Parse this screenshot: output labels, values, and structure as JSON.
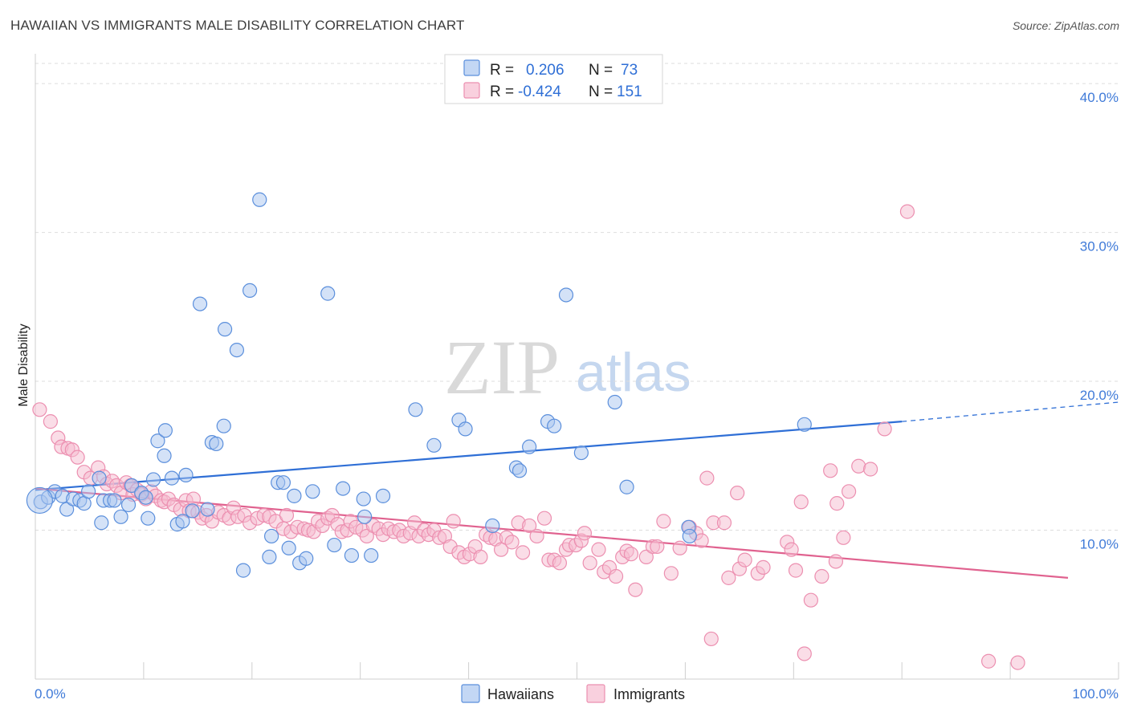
{
  "title": "HAWAIIAN VS IMMIGRANTS MALE DISABILITY CORRELATION CHART",
  "source": "Source: ZipAtlas.com",
  "watermark": {
    "zip": "ZIP",
    "atlas": "atlas"
  },
  "colors": {
    "hawaiians_fill": "#a9c6ef",
    "hawaiians_stroke": "#5b8fdc",
    "hawaiians_line": "#2f6fd6",
    "immigrants_fill": "#f6bcd0",
    "immigrants_stroke": "#ec8fb0",
    "immigrants_line": "#e0628f",
    "grid": "#dddddd",
    "tick_label": "#3f7ad8"
  },
  "legend": {
    "rows": [
      {
        "r_label": "R =",
        "r_value": "0.206",
        "n_label": "N =",
        "n_value": "73",
        "series": "hawaiians"
      },
      {
        "r_label": "R =",
        "r_value": "-0.424",
        "n_label": "N =",
        "n_value": "151",
        "series": "immigrants"
      }
    ]
  },
  "bottom_legend": [
    {
      "label": "Hawaiians",
      "series": "hawaiians"
    },
    {
      "label": "Immigrants",
      "series": "immigrants"
    }
  ],
  "chart_data": {
    "type": "scatter",
    "title": "HAWAIIAN VS IMMIGRANTS MALE DISABILITY CORRELATION CHART",
    "xlabel": "",
    "ylabel": "Male Disability",
    "xlim": [
      0,
      100
    ],
    "ylim": [
      0,
      42
    ],
    "x_tick_labels": [
      "0.0%",
      "100.0%"
    ],
    "y_ticks": [
      10,
      20,
      30,
      40
    ],
    "y_tick_labels": [
      "10.0%",
      "20.0%",
      "30.0%",
      "40.0%"
    ],
    "grid": "horizontal dashed",
    "legend_placement": "top-center",
    "series": [
      {
        "name": "Hawaiians",
        "R": 0.206,
        "N": 73,
        "trend": {
          "x": [
            0,
            80
          ],
          "y": [
            12.7,
            17.3
          ],
          "dashed_extension": {
            "x": [
              80,
              100
            ],
            "y": [
              17.3,
              18.6
            ]
          }
        },
        "points": [
          [
            0.5,
            11.9
          ],
          [
            1.2,
            12.2
          ],
          [
            1.8,
            12.6
          ],
          [
            2.5,
            12.3
          ],
          [
            2.9,
            11.4
          ],
          [
            3.5,
            12.1
          ],
          [
            4.1,
            12.0
          ],
          [
            4.5,
            11.8
          ],
          [
            4.9,
            12.6
          ],
          [
            5.9,
            13.5
          ],
          [
            6.1,
            10.5
          ],
          [
            6.3,
            12.0
          ],
          [
            6.9,
            12.0
          ],
          [
            7.3,
            12.0
          ],
          [
            7.9,
            10.9
          ],
          [
            8.6,
            11.7
          ],
          [
            8.9,
            13.0
          ],
          [
            9.8,
            12.5
          ],
          [
            10.2,
            12.2
          ],
          [
            10.4,
            10.8
          ],
          [
            10.9,
            13.4
          ],
          [
            11.3,
            16.0
          ],
          [
            11.9,
            15.0
          ],
          [
            12.0,
            16.7
          ],
          [
            12.6,
            13.5
          ],
          [
            13.1,
            10.4
          ],
          [
            13.6,
            10.6
          ],
          [
            13.9,
            13.7
          ],
          [
            14.5,
            11.3
          ],
          [
            15.2,
            25.2
          ],
          [
            15.9,
            11.4
          ],
          [
            16.3,
            15.9
          ],
          [
            16.7,
            15.8
          ],
          [
            17.5,
            23.5
          ],
          [
            17.4,
            17.0
          ],
          [
            18.6,
            22.1
          ],
          [
            19.2,
            7.3
          ],
          [
            19.8,
            26.1
          ],
          [
            20.7,
            32.2
          ],
          [
            21.6,
            8.2
          ],
          [
            21.8,
            9.6
          ],
          [
            22.4,
            13.2
          ],
          [
            22.9,
            13.2
          ],
          [
            23.4,
            8.8
          ],
          [
            23.9,
            12.3
          ],
          [
            24.4,
            7.8
          ],
          [
            25.0,
            8.1
          ],
          [
            25.6,
            12.6
          ],
          [
            27.0,
            25.9
          ],
          [
            27.6,
            9.0
          ],
          [
            28.4,
            12.8
          ],
          [
            29.2,
            8.3
          ],
          [
            30.3,
            12.1
          ],
          [
            30.4,
            10.9
          ],
          [
            31.0,
            8.3
          ],
          [
            32.1,
            12.3
          ],
          [
            35.1,
            18.1
          ],
          [
            36.8,
            15.7
          ],
          [
            39.1,
            17.4
          ],
          [
            39.7,
            16.8
          ],
          [
            42.2,
            10.3
          ],
          [
            44.4,
            14.2
          ],
          [
            44.7,
            14.0
          ],
          [
            45.6,
            15.6
          ],
          [
            47.3,
            17.3
          ],
          [
            47.9,
            17.0
          ],
          [
            49.0,
            25.8
          ],
          [
            50.4,
            15.2
          ],
          [
            53.5,
            18.6
          ],
          [
            54.6,
            12.9
          ],
          [
            60.3,
            10.2
          ],
          [
            60.4,
            9.6
          ],
          [
            71.0,
            17.1
          ]
        ]
      },
      {
        "name": "Immigrants",
        "R": -0.424,
        "N": 151,
        "trend": {
          "x": [
            0,
            100
          ],
          "y": [
            12.8,
            6.8
          ]
        },
        "points": [
          [
            0.4,
            18.1
          ],
          [
            1.4,
            17.3
          ],
          [
            2.1,
            16.2
          ],
          [
            2.4,
            15.6
          ],
          [
            3.0,
            15.5
          ],
          [
            3.4,
            15.4
          ],
          [
            3.9,
            14.9
          ],
          [
            4.5,
            13.9
          ],
          [
            5.1,
            13.5
          ],
          [
            5.8,
            14.2
          ],
          [
            6.3,
            13.6
          ],
          [
            6.6,
            13.1
          ],
          [
            7.1,
            13.3
          ],
          [
            7.5,
            13.0
          ],
          [
            7.9,
            12.5
          ],
          [
            8.4,
            13.2
          ],
          [
            8.8,
            13.0
          ],
          [
            9.0,
            12.4
          ],
          [
            9.4,
            12.7
          ],
          [
            9.8,
            12.4
          ],
          [
            10.2,
            12.1
          ],
          [
            10.7,
            12.6
          ],
          [
            11.1,
            12.3
          ],
          [
            11.6,
            12.0
          ],
          [
            11.9,
            11.9
          ],
          [
            12.3,
            12.1
          ],
          [
            12.8,
            11.7
          ],
          [
            13.4,
            11.4
          ],
          [
            13.9,
            12.0
          ],
          [
            14.2,
            11.3
          ],
          [
            14.6,
            12.1
          ],
          [
            15.0,
            11.2
          ],
          [
            15.4,
            10.8
          ],
          [
            15.8,
            11.0
          ],
          [
            16.3,
            10.6
          ],
          [
            16.9,
            11.2
          ],
          [
            17.4,
            11.0
          ],
          [
            17.9,
            10.8
          ],
          [
            18.3,
            11.5
          ],
          [
            18.7,
            10.9
          ],
          [
            19.3,
            11.0
          ],
          [
            19.8,
            10.5
          ],
          [
            20.5,
            10.8
          ],
          [
            21.1,
            11.0
          ],
          [
            21.6,
            10.9
          ],
          [
            22.2,
            10.6
          ],
          [
            22.9,
            10.1
          ],
          [
            23.2,
            11.0
          ],
          [
            23.6,
            9.9
          ],
          [
            24.2,
            10.2
          ],
          [
            24.8,
            10.1
          ],
          [
            25.2,
            10.0
          ],
          [
            25.7,
            9.9
          ],
          [
            26.1,
            10.6
          ],
          [
            26.5,
            10.3
          ],
          [
            27.0,
            10.8
          ],
          [
            27.4,
            11.0
          ],
          [
            27.9,
            10.4
          ],
          [
            28.3,
            9.9
          ],
          [
            28.8,
            10.0
          ],
          [
            29.1,
            10.6
          ],
          [
            29.6,
            10.2
          ],
          [
            30.2,
            10.0
          ],
          [
            30.6,
            9.6
          ],
          [
            31.2,
            10.3
          ],
          [
            31.7,
            10.1
          ],
          [
            32.1,
            9.7
          ],
          [
            32.6,
            10.1
          ],
          [
            33.1,
            9.9
          ],
          [
            33.6,
            10.0
          ],
          [
            34.0,
            9.6
          ],
          [
            34.6,
            9.8
          ],
          [
            35.0,
            10.5
          ],
          [
            35.4,
            9.6
          ],
          [
            35.9,
            10.0
          ],
          [
            36.3,
            9.7
          ],
          [
            36.8,
            10.0
          ],
          [
            37.3,
            9.5
          ],
          [
            37.8,
            9.6
          ],
          [
            38.3,
            8.9
          ],
          [
            38.6,
            10.6
          ],
          [
            39.1,
            8.5
          ],
          [
            39.6,
            8.2
          ],
          [
            40.1,
            8.4
          ],
          [
            40.6,
            8.9
          ],
          [
            41.1,
            8.2
          ],
          [
            41.6,
            9.7
          ],
          [
            42.0,
            9.5
          ],
          [
            42.5,
            9.4
          ],
          [
            43.0,
            8.7
          ],
          [
            43.5,
            9.5
          ],
          [
            44.0,
            9.2
          ],
          [
            44.6,
            10.5
          ],
          [
            45.0,
            8.5
          ],
          [
            45.6,
            10.3
          ],
          [
            46.3,
            9.6
          ],
          [
            47.0,
            10.8
          ],
          [
            47.4,
            8.0
          ],
          [
            47.9,
            8.0
          ],
          [
            48.4,
            7.8
          ],
          [
            49.0,
            8.7
          ],
          [
            49.3,
            9.0
          ],
          [
            49.9,
            9.0
          ],
          [
            50.4,
            9.3
          ],
          [
            50.7,
            9.8
          ],
          [
            51.2,
            7.8
          ],
          [
            52.0,
            8.7
          ],
          [
            52.5,
            7.2
          ],
          [
            53.0,
            7.5
          ],
          [
            53.6,
            6.9
          ],
          [
            54.2,
            8.2
          ],
          [
            54.6,
            8.6
          ],
          [
            55.0,
            8.4
          ],
          [
            55.4,
            6.0
          ],
          [
            56.4,
            8.2
          ],
          [
            57.0,
            8.9
          ],
          [
            57.4,
            8.9
          ],
          [
            58.0,
            10.6
          ],
          [
            58.7,
            7.1
          ],
          [
            59.5,
            8.8
          ],
          [
            60.4,
            10.2
          ],
          [
            61.0,
            9.8
          ],
          [
            61.5,
            9.3
          ],
          [
            62.0,
            13.5
          ],
          [
            62.6,
            10.5
          ],
          [
            63.6,
            10.5
          ],
          [
            64.0,
            6.8
          ],
          [
            64.8,
            12.5
          ],
          [
            65.0,
            7.4
          ],
          [
            65.5,
            8.0
          ],
          [
            66.7,
            7.1
          ],
          [
            67.2,
            7.5
          ],
          [
            69.4,
            9.2
          ],
          [
            69.8,
            8.7
          ],
          [
            70.2,
            7.3
          ],
          [
            70.7,
            11.9
          ],
          [
            71.6,
            5.3
          ],
          [
            72.6,
            6.9
          ],
          [
            73.4,
            14.0
          ],
          [
            73.9,
            7.9
          ],
          [
            74.0,
            11.8
          ],
          [
            74.6,
            9.5
          ],
          [
            75.1,
            12.6
          ],
          [
            76.0,
            14.3
          ],
          [
            77.1,
            14.1
          ],
          [
            78.4,
            16.8
          ],
          [
            80.5,
            31.4
          ],
          [
            62.4,
            2.7
          ],
          [
            71.0,
            1.7
          ],
          [
            88.0,
            1.2
          ],
          [
            90.7,
            1.1
          ]
        ]
      }
    ]
  }
}
